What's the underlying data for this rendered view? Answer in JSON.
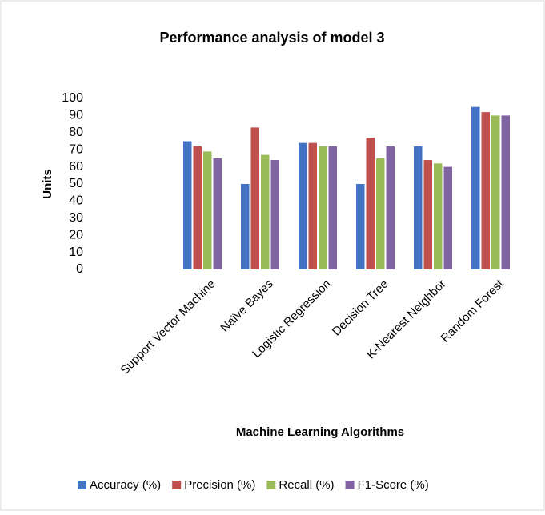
{
  "chart_data": {
    "type": "bar",
    "title": "Performance analysis of model 3",
    "x_label": "Machine Learning Algorithms",
    "y_label": "Units",
    "categories": [
      "Support Vector Machine",
      "Naïve Bayes",
      "Logistic Regression",
      "Decision Tree",
      "K-Nearest Neighbor",
      "Random Forest"
    ],
    "series": [
      {
        "name": "Accuracy (%)",
        "color": "#4472c4",
        "values": [
          75,
          50,
          74,
          50,
          72,
          95
        ]
      },
      {
        "name": "Precision (%)",
        "color": "#c0504d",
        "values": [
          72,
          83,
          74,
          77,
          64,
          92
        ]
      },
      {
        "name": "Recall (%)",
        "color": "#9bbb59",
        "values": [
          69,
          67,
          72,
          65,
          62,
          90
        ]
      },
      {
        "name": "F1-Score (%)",
        "color": "#8064a2",
        "values": [
          65,
          64,
          72,
          72,
          60,
          90
        ]
      }
    ],
    "ylim": [
      0,
      100
    ],
    "yticks": [
      0,
      10,
      20,
      30,
      40,
      50,
      60,
      70,
      80,
      90,
      100
    ],
    "grid": false,
    "legend": "bottom"
  }
}
